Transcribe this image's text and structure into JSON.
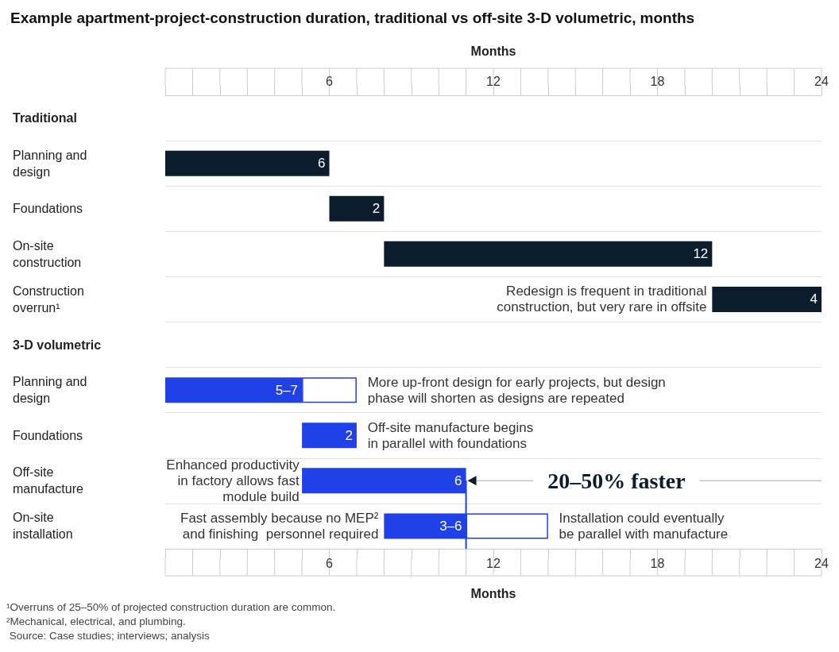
{
  "chart_data": {
    "type": "bar",
    "orientation": "horizontal",
    "title": "Example apartment-project-construction duration, traditional vs off-site 3-D volumetric,",
    "subtitle": "months",
    "xlabel": "Months",
    "x2label": "Months",
    "categories": [
      "Traditional",
      "Planning and design",
      "Foundations",
      "On-site construction",
      "Construction overrun¹",
      "3-D volumetric",
      "Planning and design",
      "Foundations",
      "Off-site manufacture",
      "On-site installation"
    ],
    "series": [
      {
        "colors": [
          null,
          "#0b1c2c",
          "#0b1c2c",
          "#0b1c2c",
          "#0b1c2c",
          null,
          "#2040e8",
          "#2040e8",
          "#2040e8",
          "#2040e8"
        ],
        "base": [
          null,
          0,
          6,
          8,
          20,
          null,
          0,
          5,
          5,
          8
        ],
        "values": [
          null,
          6,
          2,
          12,
          4,
          null,
          5,
          2,
          6,
          3
        ],
        "value_labels": [
          null,
          "6",
          "2",
          "12",
          "4",
          null,
          "5–7",
          "2",
          "6",
          "3–6"
        ]
      },
      {
        "color": "#2040e8",
        "base": [
          null,
          null,
          null,
          null,
          null,
          null,
          5,
          null,
          null,
          11
        ],
        "values": [
          null,
          null,
          null,
          null,
          null,
          null,
          2,
          null,
          null,
          3
        ]
      }
    ],
    "xlim": [
      0,
      24
    ],
    "x2lim": [
      0,
      24
    ],
    "xticks": [
      {
        "value": 0,
        "label": null
      },
      {
        "value": 1,
        "label": null
      },
      {
        "value": 2,
        "label": null
      },
      {
        "value": 3,
        "label": null
      },
      {
        "value": 4,
        "label": null
      },
      {
        "value": 5,
        "label": null
      },
      6,
      {
        "value": 7,
        "label": null
      },
      {
        "value": 8,
        "label": null
      },
      {
        "value": 9,
        "label": null
      },
      {
        "value": 10,
        "label": null
      },
      {
        "value": 11,
        "label": null
      },
      12,
      {
        "value": 13,
        "label": null
      },
      {
        "value": 14,
        "label": null
      },
      {
        "value": 15,
        "label": null
      },
      {
        "value": 16,
        "label": null
      },
      {
        "value": 17,
        "label": null
      },
      18,
      {
        "value": 19,
        "label": null
      },
      {
        "value": 20,
        "label": null
      },
      {
        "value": 21,
        "label": null
      },
      {
        "value": 22,
        "label": null
      },
      {
        "value": 23,
        "label": null
      },
      24
    ],
    "x2ticks": [
      {
        "value": 0,
        "label": null
      },
      {
        "value": 1,
        "label": null
      },
      {
        "value": 2,
        "label": null
      },
      {
        "value": 3,
        "label": null
      },
      {
        "value": 4,
        "label": null
      },
      {
        "value": 5,
        "label": null
      },
      6,
      {
        "value": 7,
        "label": null
      },
      {
        "value": 8,
        "label": null
      },
      {
        "value": 9,
        "label": null
      },
      {
        "value": 10,
        "label": null
      },
      {
        "value": 11,
        "label": null
      },
      12,
      {
        "value": 13,
        "label": null
      },
      {
        "value": 14,
        "label": null
      },
      {
        "value": 15,
        "label": null
      },
      {
        "value": 16,
        "label": null
      },
      {
        "value": 17,
        "label": null
      },
      18,
      {
        "value": 19,
        "label": null
      },
      {
        "value": 20,
        "label": null
      },
      {
        "value": 21,
        "label": null
      },
      {
        "value": 22,
        "label": null
      },
      {
        "value": 23,
        "label": null
      },
      24
    ],
    "ref_lines": [
      {
        "axis": "x",
        "value": 11,
        "color": "#2040e8"
      }
    ],
    "grid": "y",
    "annotations": [
      "Redesign is frequent in traditional\nconstruction, but very rare in offsite",
      "More up-front design for early projects, but design\nphase will shorten as designs are repeated",
      "Off-site manufacture begins\nin parallel with foundations",
      "Enhanced productivity\nin factory allows fast\nmodule build",
      "Fast assembly because no MEP²\nand finishing  personnel required",
      "Installation could eventually\nbe parallel with manufacture",
      "20–50% faster",
      "¹Overruns of 25–50% of projected construction duration are common.",
      "²Mechanical, electrical, and plumbing.",
      " Source: Case studies; interviews; analysis"
    ]
  }
}
